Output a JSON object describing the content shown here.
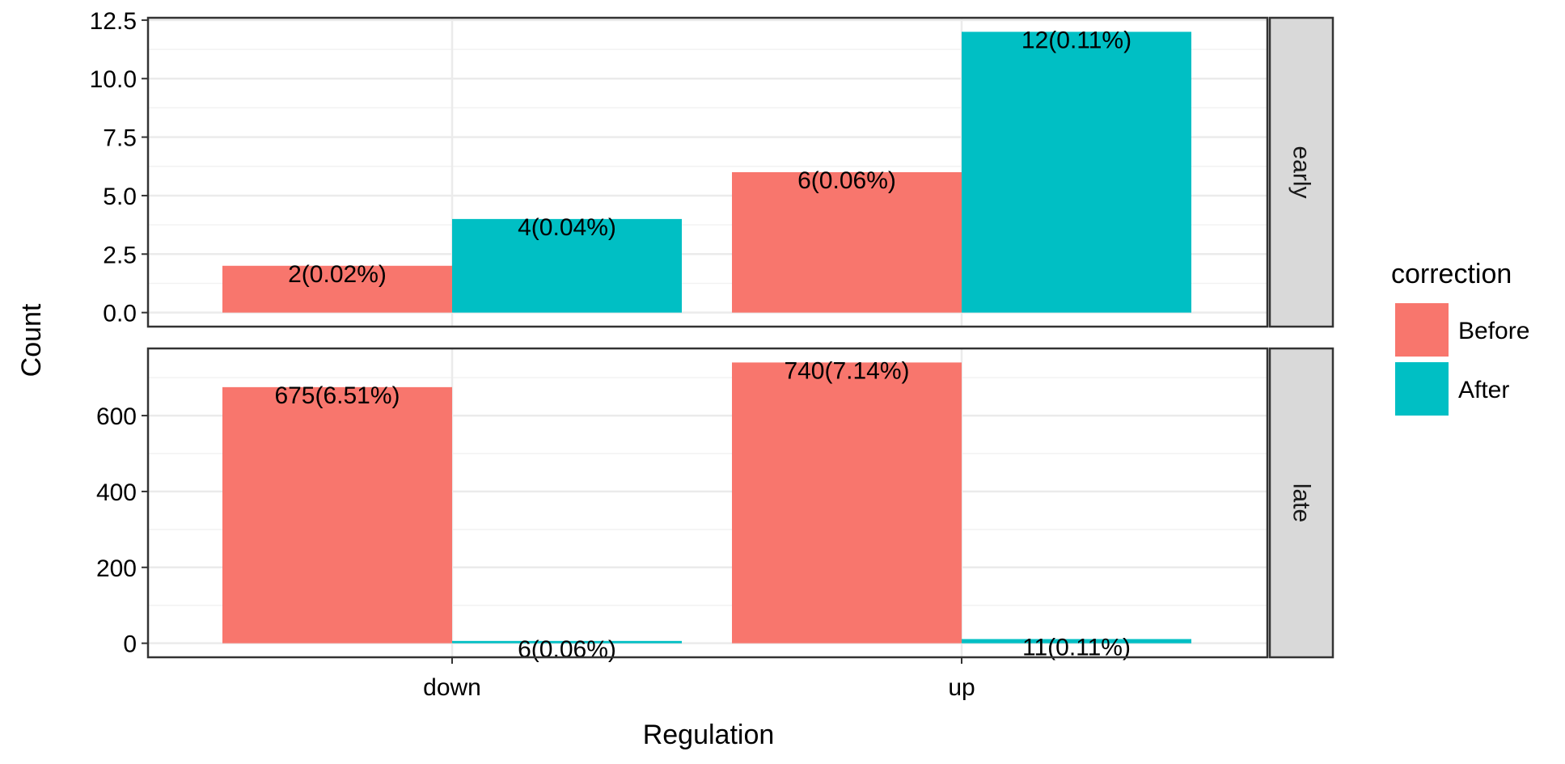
{
  "chart_data": {
    "type": "bar",
    "xlabel": "Regulation",
    "ylabel": "Count",
    "categories": [
      "down",
      "up"
    ],
    "legend": {
      "title": "correction",
      "position": "right",
      "entries": [
        {
          "name": "Before",
          "color": "#F8766D"
        },
        {
          "name": "After",
          "color": "#00BFC4"
        }
      ]
    },
    "facets": [
      {
        "name": "early",
        "ylim": [
          -0.6,
          12.6
        ],
        "yticks": [
          0.0,
          2.5,
          5.0,
          7.5,
          10.0,
          12.5
        ],
        "ytick_labels": [
          "0.0",
          "2.5",
          "5.0",
          "7.5",
          "10.0",
          "12.5"
        ],
        "series": [
          {
            "name": "Before",
            "values": [
              2,
              6
            ],
            "labels": [
              "2(0.02%)",
              "6(0.06%)"
            ]
          },
          {
            "name": "After",
            "values": [
              4,
              12
            ],
            "labels": [
              "4(0.04%)",
              "12(0.11%)"
            ]
          }
        ]
      },
      {
        "name": "late",
        "ylim": [
          -37,
          777
        ],
        "yticks": [
          0,
          200,
          400,
          600
        ],
        "ytick_labels": [
          "0",
          "200",
          "400",
          "600"
        ],
        "series": [
          {
            "name": "Before",
            "values": [
              675,
              740
            ],
            "labels": [
              "675(6.51%)",
              "740(7.14%)"
            ]
          },
          {
            "name": "After",
            "values": [
              6,
              11
            ],
            "labels": [
              "6(0.06%)",
              "11(0.11%)"
            ]
          }
        ]
      }
    ],
    "grid": true
  }
}
